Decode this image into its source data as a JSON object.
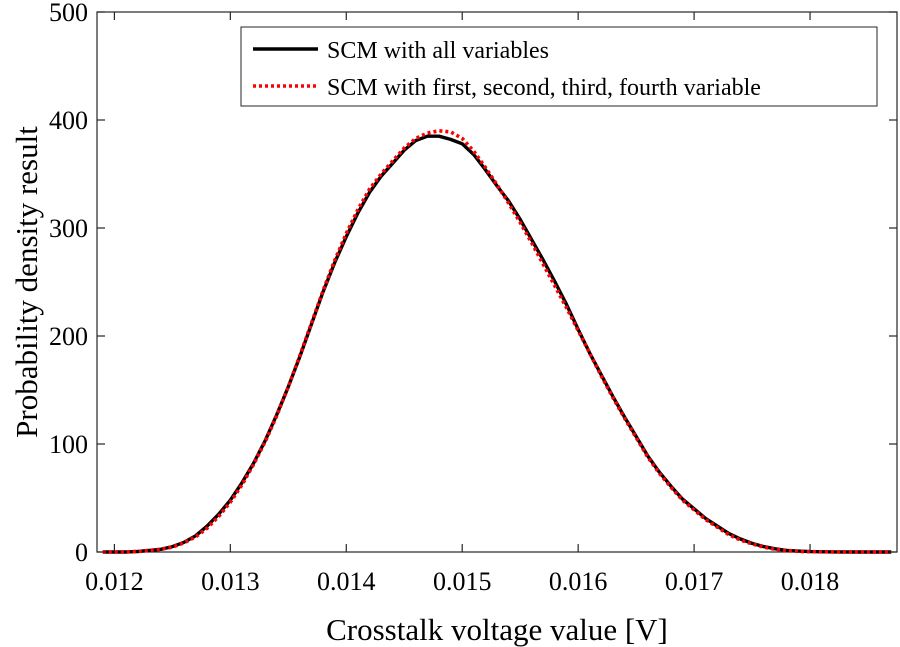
{
  "chart_data": {
    "type": "line",
    "title": "",
    "xlabel": "Crosstalk voltage value [V]",
    "ylabel": "Probability density result",
    "xlim": [
      0.01185,
      0.01875
    ],
    "ylim": [
      0,
      500
    ],
    "xticks": [
      0.012,
      0.013,
      0.014,
      0.015,
      0.016,
      0.017,
      0.018
    ],
    "xtick_labels": [
      "0.012",
      "0.013",
      "0.014",
      "0.015",
      "0.016",
      "0.017",
      "0.018"
    ],
    "yticks": [
      0,
      100,
      200,
      300,
      400,
      500
    ],
    "ytick_labels": [
      "0",
      "100",
      "200",
      "300",
      "400",
      "500"
    ],
    "grid": false,
    "legend_position": "top-right",
    "series": [
      {
        "name": "SCM with all variables",
        "color": "#000000",
        "style": "solid",
        "x": [
          0.0119,
          0.0121,
          0.0122,
          0.0123,
          0.0124,
          0.0125,
          0.0126,
          0.0127,
          0.0128,
          0.0129,
          0.013,
          0.0131,
          0.0132,
          0.0133,
          0.0134,
          0.0135,
          0.0136,
          0.0137,
          0.0138,
          0.0139,
          0.014,
          0.0141,
          0.0142,
          0.0143,
          0.0144,
          0.0145,
          0.0146,
          0.0147,
          0.0148,
          0.0149,
          0.015,
          0.0151,
          0.0152,
          0.0153,
          0.0154,
          0.0155,
          0.0156,
          0.0157,
          0.0158,
          0.0159,
          0.016,
          0.0161,
          0.0162,
          0.0163,
          0.0164,
          0.0165,
          0.0166,
          0.0167,
          0.0168,
          0.0169,
          0.017,
          0.0171,
          0.0172,
          0.0173,
          0.0174,
          0.0175,
          0.0176,
          0.0177,
          0.0178,
          0.0179,
          0.018,
          0.0182,
          0.0184,
          0.0187
        ],
        "y": [
          0,
          0,
          0.5,
          1.5,
          2.5,
          5,
          9,
          15,
          24,
          35,
          48,
          64,
          82,
          103,
          127,
          153,
          181,
          211,
          241,
          268,
          292,
          314,
          333,
          348,
          360,
          372,
          381,
          385,
          385,
          382,
          378,
          368,
          354,
          339,
          325,
          308,
          289,
          270,
          250,
          229,
          206,
          184,
          164,
          144,
          125,
          107,
          89,
          74,
          61,
          49,
          40,
          31,
          24,
          17,
          12,
          8,
          5,
          3,
          1.5,
          0.8,
          0.4,
          0.1,
          0,
          0
        ]
      },
      {
        "name": "SCM with first, second, third, fourth variable",
        "color": "#ff0000",
        "style": "dotted",
        "x": [
          0.0119,
          0.0121,
          0.0122,
          0.0123,
          0.0124,
          0.0125,
          0.0126,
          0.0127,
          0.0128,
          0.0129,
          0.013,
          0.0131,
          0.0132,
          0.0133,
          0.0134,
          0.0135,
          0.0136,
          0.0137,
          0.0138,
          0.0139,
          0.014,
          0.0141,
          0.0142,
          0.0143,
          0.0144,
          0.0145,
          0.0146,
          0.0147,
          0.0148,
          0.0149,
          0.015,
          0.0151,
          0.0152,
          0.0153,
          0.0154,
          0.0155,
          0.0156,
          0.0157,
          0.0158,
          0.0159,
          0.016,
          0.0161,
          0.0162,
          0.0163,
          0.0164,
          0.0165,
          0.0166,
          0.0167,
          0.0168,
          0.0169,
          0.017,
          0.0171,
          0.0172,
          0.0173,
          0.0174,
          0.0175,
          0.0176,
          0.0177,
          0.0178,
          0.0179,
          0.018,
          0.0182,
          0.0184,
          0.0187
        ],
        "y": [
          0,
          0,
          0.5,
          1.5,
          2.5,
          4.5,
          8.5,
          14,
          22,
          33,
          46,
          62,
          81,
          102,
          126,
          153,
          182,
          212,
          242,
          270,
          295,
          317,
          336,
          350,
          362,
          374,
          383,
          388,
          390,
          389,
          383,
          371,
          356,
          340,
          323,
          305,
          286,
          266,
          246,
          226,
          205,
          184,
          163,
          143,
          124,
          106,
          88,
          73,
          60,
          48,
          39,
          30,
          23,
          16,
          11,
          7.5,
          4.5,
          2.5,
          1.2,
          0.6,
          0.3,
          0.1,
          0,
          0
        ]
      }
    ]
  }
}
